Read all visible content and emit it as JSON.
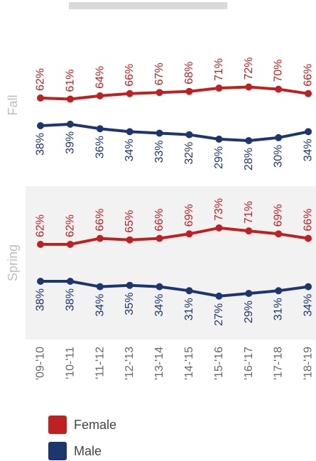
{
  "colors": {
    "female": "#c0201f",
    "male": "#1e3670",
    "panel_label": "#bdbdbd",
    "spring_bg": "#f2f2f2",
    "scrollbar": "#d9d9d9",
    "tick_text": "#666666"
  },
  "chart_data": {
    "type": "line",
    "categories": [
      "'09-'10",
      "'10-'11",
      "'11-'12",
      "'12-'13",
      "'13-'14",
      "'14-'15",
      "'15-'16",
      "'16-'17",
      "'17-'18",
      "'18-'19"
    ],
    "y_unit": "%",
    "ylim": [
      0,
      100
    ],
    "grid": false,
    "legend_position": "bottom-left",
    "panels": [
      {
        "name": "Fall",
        "series": [
          {
            "name": "Female",
            "values": [
              62,
              61,
              64,
              66,
              67,
              68,
              71,
              72,
              70,
              66
            ],
            "labels": [
              "62%",
              "61%",
              "64%",
              "66%",
              "67%",
              "68%",
              "71%",
              "72%",
              "70%",
              "66%"
            ]
          },
          {
            "name": "Male",
            "values": [
              38,
              39,
              36,
              34,
              33,
              32,
              29,
              28,
              30,
              34
            ],
            "labels": [
              "38%",
              "39%",
              "36%",
              "34%",
              "33%",
              "32%",
              "29%",
              "28%",
              "30%",
              "34%"
            ]
          }
        ]
      },
      {
        "name": "Spring",
        "series": [
          {
            "name": "Female",
            "values": [
              62,
              62,
              66,
              65,
              66,
              69,
              73,
              71,
              69,
              66
            ],
            "labels": [
              "62%",
              "62%",
              "66%",
              "65%",
              "66%",
              "69%",
              "73%",
              "71%",
              "69%",
              "66%"
            ]
          },
          {
            "name": "Male",
            "values": [
              38,
              38,
              34,
              35,
              34,
              31,
              27,
              29,
              31,
              34
            ],
            "labels": [
              "38%",
              "38%",
              "34%",
              "35%",
              "34%",
              "31%",
              "27%",
              "29%",
              "31%",
              "34%"
            ]
          }
        ]
      }
    ]
  },
  "legend": [
    {
      "label": "Female",
      "color_key": "female"
    },
    {
      "label": "Male",
      "color_key": "male"
    }
  ]
}
